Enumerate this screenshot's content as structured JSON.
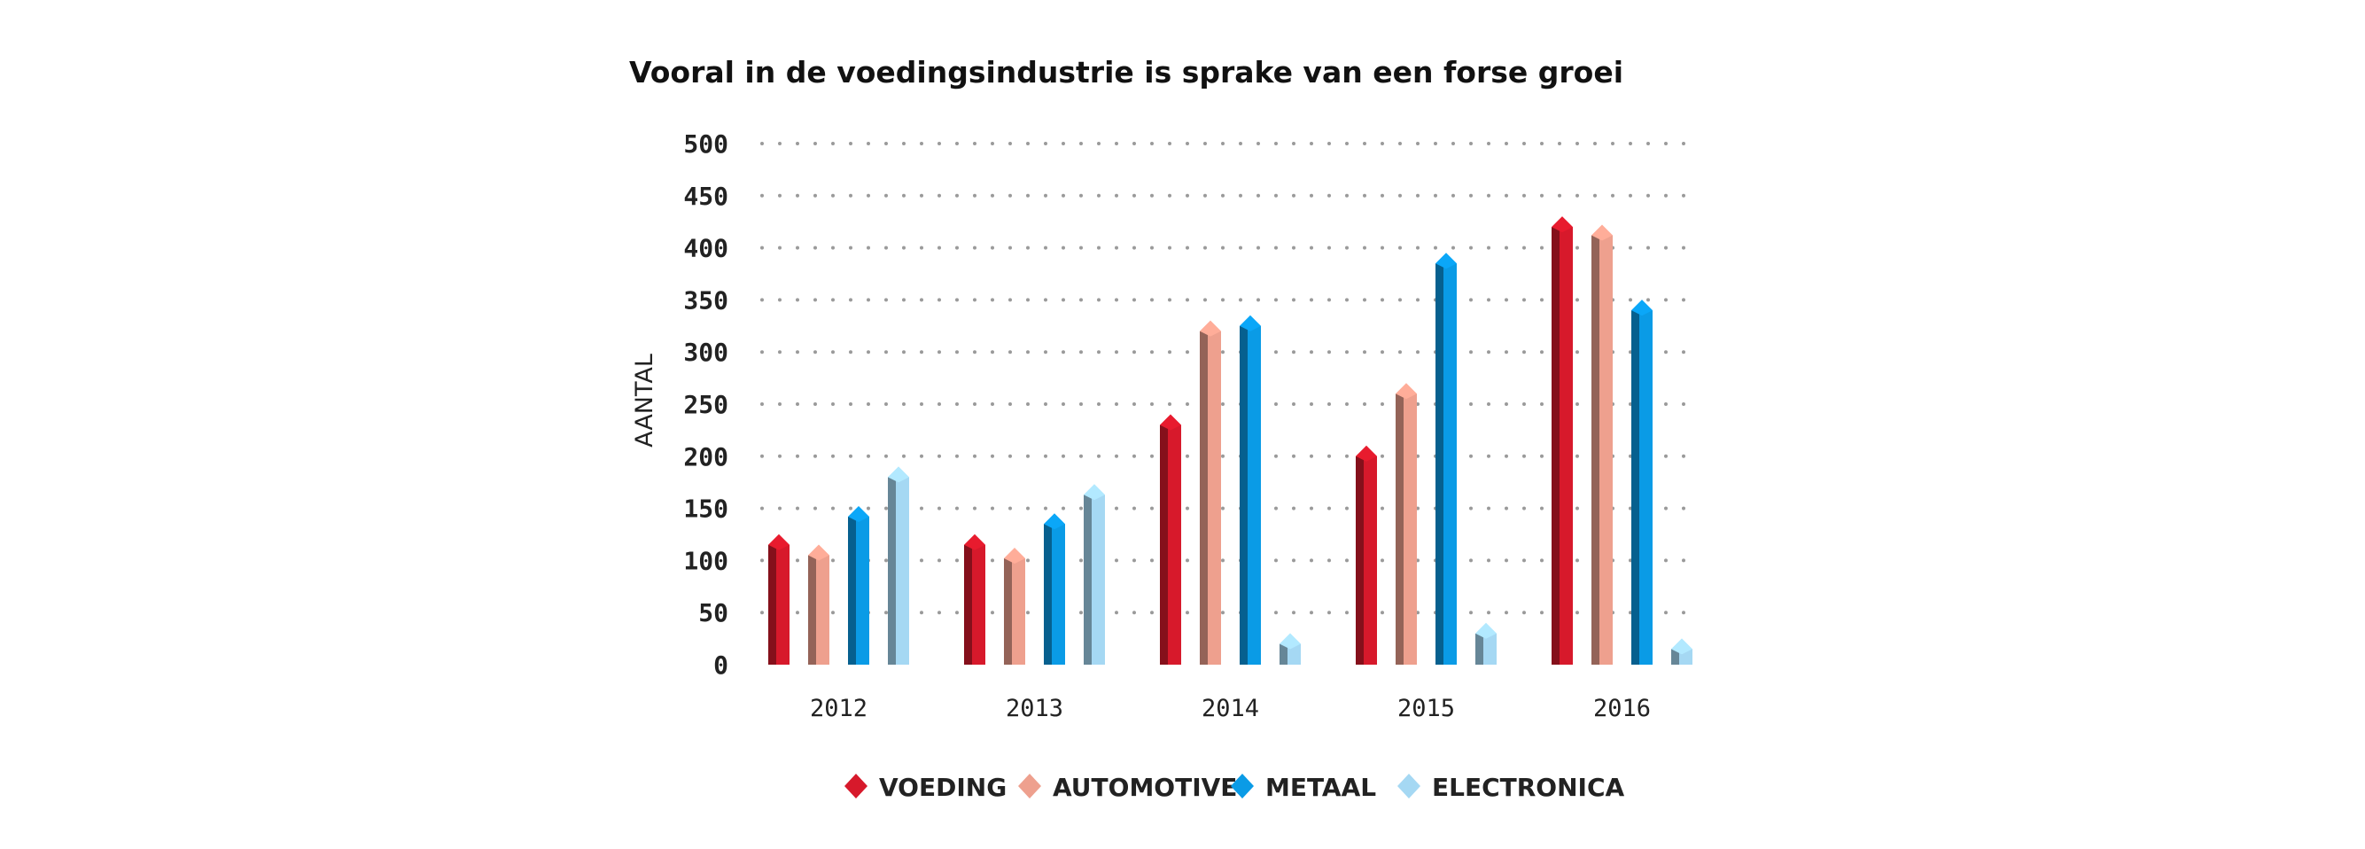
{
  "chart_data": {
    "type": "bar",
    "title": "Vooral in de voedingsindustrie is sprake van een forse groei",
    "xlabel": "",
    "ylabel": "AANTAL",
    "ylim": [
      0,
      500
    ],
    "yticks": [
      0,
      50,
      100,
      150,
      200,
      250,
      300,
      350,
      400,
      450,
      500
    ],
    "categories": [
      "2012",
      "2013",
      "2014",
      "2015",
      "2016"
    ],
    "grid": "dotted-horizontal",
    "legend_position": "bottom",
    "series": [
      {
        "name": "VOEDING",
        "color": "#d7192b",
        "values": [
          115,
          115,
          230,
          200,
          420
        ]
      },
      {
        "name": "AUTOMOTIVE",
        "color": "#eea08e",
        "values": [
          105,
          102,
          320,
          260,
          412
        ]
      },
      {
        "name": "METAAL",
        "color": "#0a9be6",
        "values": [
          142,
          135,
          325,
          385,
          340
        ]
      },
      {
        "name": "ELECTRONICA",
        "color": "#a5d8f3",
        "values": [
          180,
          163,
          20,
          30,
          15
        ]
      }
    ]
  }
}
